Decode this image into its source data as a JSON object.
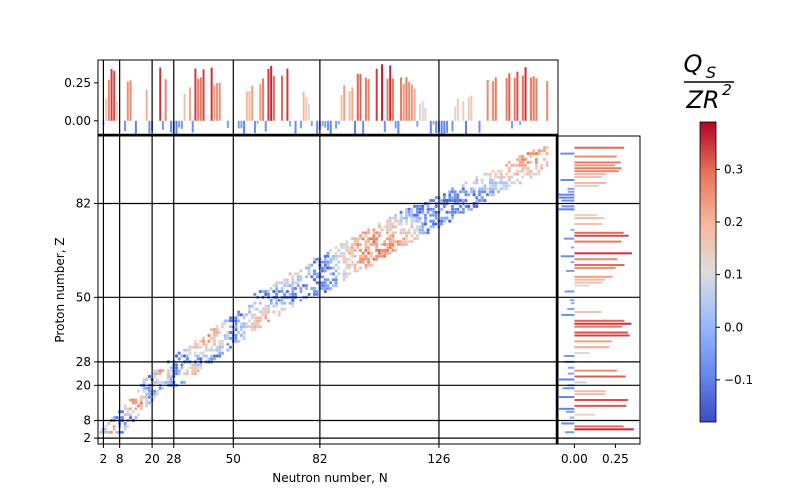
{
  "chart_data": {
    "type": "scatter",
    "xlabel": "Neutron number, N",
    "ylabel": "Proton number, Z",
    "xlim": [
      0,
      170
    ],
    "ylim": [
      0,
      105
    ],
    "magic_numbers": [
      2,
      8,
      20,
      28,
      50,
      82,
      126
    ],
    "x_ticks": [
      "2",
      "8",
      "20",
      "28",
      "50",
      "82",
      "126"
    ],
    "y_ticks": [
      "2",
      "8",
      "20",
      "28",
      "50",
      "82"
    ],
    "top_hist": {
      "ylim": [
        -0.1,
        0.4
      ],
      "ticks": [
        "0.25",
        "0.00"
      ],
      "tick_values": [
        0.25,
        0.0
      ]
    },
    "right_hist": {
      "xlim": [
        -0.1,
        0.4
      ],
      "ticks": [
        "0.00",
        "0.25"
      ],
      "tick_values": [
        0.0,
        0.25
      ]
    },
    "colorbar": {
      "label_num": "Q",
      "label_sub": "S",
      "label_den": "ZR",
      "label_sup": "2",
      "min": -0.18,
      "max": 0.39,
      "ticks": [
        "0.3",
        "0.2",
        "0.1",
        "0.0",
        "−0.1"
      ],
      "tick_values": [
        0.3,
        0.2,
        0.1,
        0.0,
        -0.1
      ],
      "colors": [
        "#3b4cc0",
        "#7b9ff9",
        "#c0d4f5",
        "#dddcdc",
        "#f2cbb7",
        "#f49a7b",
        "#b40426"
      ]
    }
  }
}
